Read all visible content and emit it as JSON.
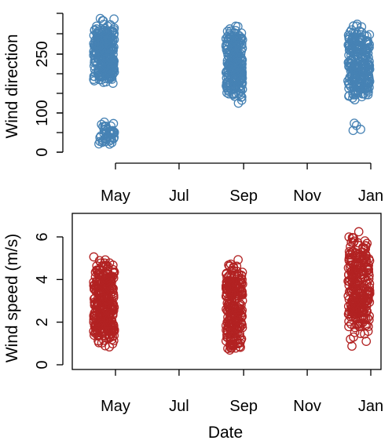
{
  "chart_data": [
    {
      "type": "scatter",
      "ylabel": "Wind direction",
      "xlabel": "",
      "marker_color": "#4682B4",
      "y_ticks": [
        0,
        100,
        250
      ],
      "ylim": [
        0,
        360
      ],
      "x_ticks": [
        {
          "label": "May",
          "date": "2021-05-01"
        },
        {
          "label": "Jul",
          "date": "2021-07-01"
        },
        {
          "label": "Sep",
          "date": "2021-09-01"
        },
        {
          "label": "Nov",
          "date": "2021-11-01"
        },
        {
          "label": "Jan",
          "date": "2022-01-01"
        }
      ],
      "frame": "left-axis-only",
      "clusters": [
        {
          "date_start": "2021-04-10",
          "date_end": "2021-04-30",
          "y_min": 150,
          "y_max": 360,
          "count": 260
        },
        {
          "date_start": "2021-04-15",
          "date_end": "2021-04-30",
          "y_min": 0,
          "y_max": 90,
          "count": 45
        },
        {
          "date_start": "2021-08-15",
          "date_end": "2021-08-31",
          "y_min": 100,
          "y_max": 350,
          "count": 230
        },
        {
          "date_start": "2021-12-10",
          "date_end": "2021-12-31",
          "y_min": 100,
          "y_max": 350,
          "count": 260
        },
        {
          "date_start": "2021-12-15",
          "date_end": "2021-12-26",
          "y_min": 35,
          "y_max": 95,
          "count": 4
        }
      ]
    },
    {
      "type": "scatter",
      "ylabel": "Wind speed (m/s)",
      "xlabel": "Date",
      "marker_color": "#B22222",
      "y_ticks": [
        0,
        2,
        4,
        6
      ],
      "ylim": [
        0,
        7
      ],
      "x_ticks": [
        {
          "label": "May",
          "date": "2021-05-01"
        },
        {
          "label": "Jul",
          "date": "2021-07-01"
        },
        {
          "label": "Sep",
          "date": "2021-09-01"
        },
        {
          "label": "Nov",
          "date": "2021-11-01"
        },
        {
          "label": "Jan",
          "date": "2022-01-01"
        }
      ],
      "frame": "box",
      "clusters": [
        {
          "date_start": "2021-04-10",
          "date_end": "2021-04-30",
          "y_min": 0.2,
          "y_max": 5.6,
          "count": 300
        },
        {
          "date_start": "2021-08-15",
          "date_end": "2021-08-31",
          "y_min": 0.1,
          "y_max": 5.4,
          "count": 240
        },
        {
          "date_start": "2021-12-10",
          "date_end": "2021-12-31",
          "y_min": 0.3,
          "y_max": 6.9,
          "count": 270
        }
      ]
    }
  ]
}
